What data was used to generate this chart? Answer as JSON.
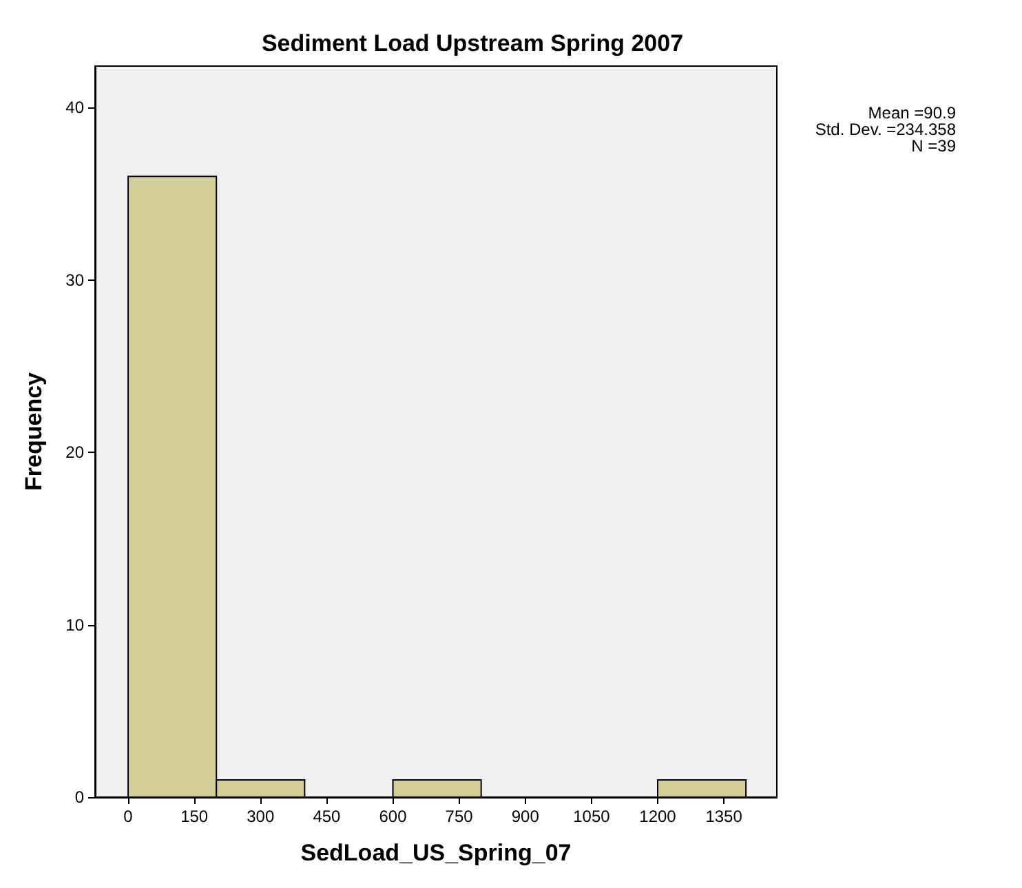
{
  "chart_data": {
    "type": "histogram",
    "title": "Sediment Load Upstream Spring 2007",
    "xlabel": "SedLoad_US_Spring_07",
    "ylabel": "Frequency",
    "bins": [
      0,
      200,
      400,
      600,
      800,
      1000,
      1200,
      1400
    ],
    "values": [
      36,
      1,
      0,
      1,
      0,
      0,
      1
    ],
    "color": "#d3ce97",
    "xlim": [
      -75,
      1470
    ],
    "xticks": [
      0,
      150,
      300,
      450,
      600,
      750,
      900,
      1050,
      1200,
      1350
    ],
    "ylim": [
      0,
      42.4
    ],
    "yticks": [
      0,
      10,
      20,
      30,
      40
    ],
    "grid": false,
    "annotations": [
      "Mean =90.9",
      "Std. Dev. =234.358",
      "N =39"
    ]
  }
}
